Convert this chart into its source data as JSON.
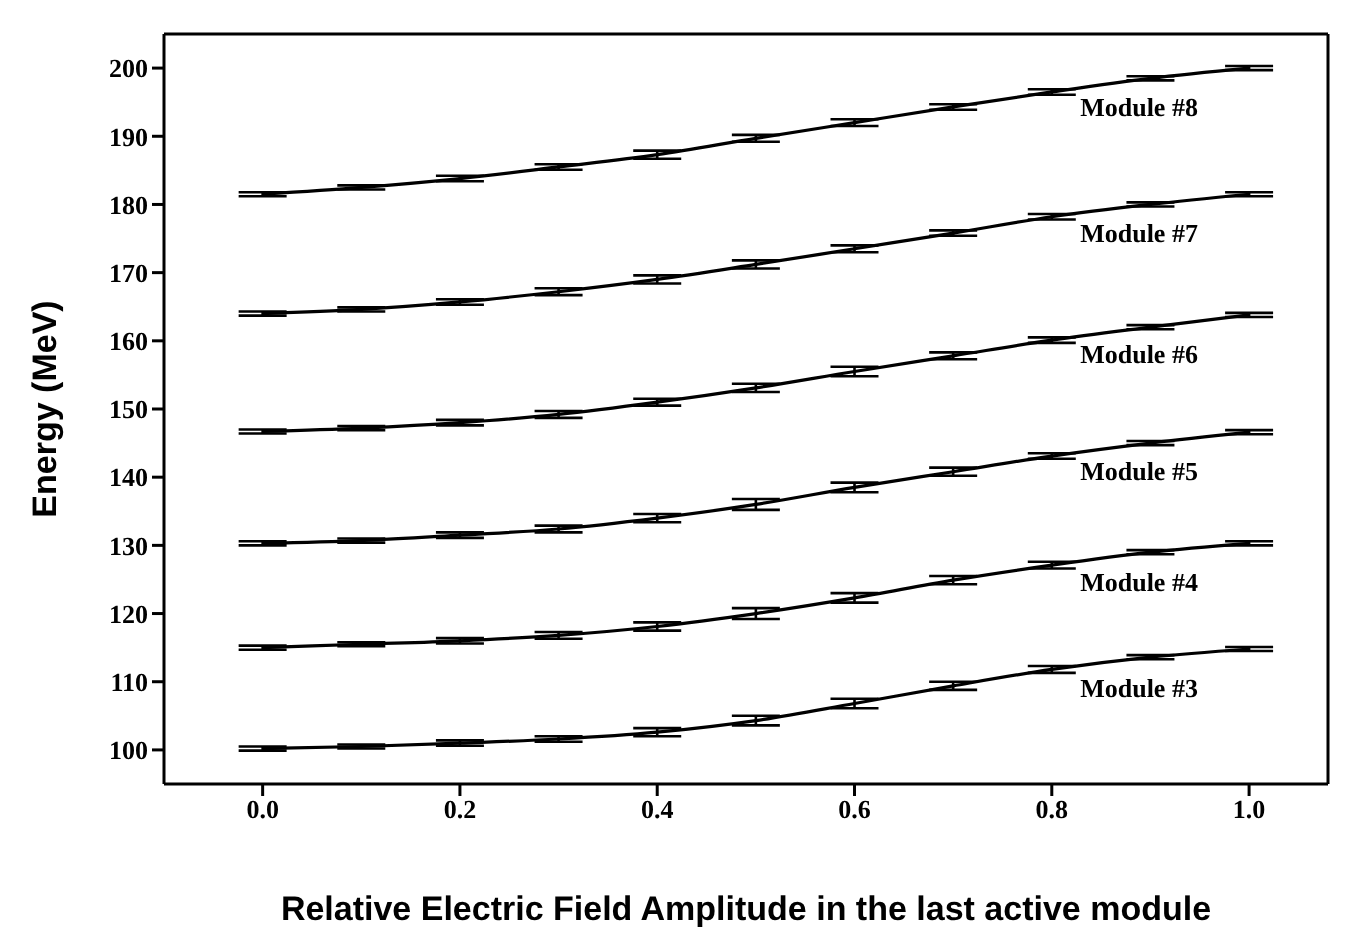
{
  "chart_data": {
    "type": "line",
    "xlabel": "Relative Electric Field Amplitude in the last active module",
    "ylabel": "Energy (MeV)",
    "x": [
      0,
      0.1,
      0.2,
      0.3,
      0.4,
      0.5,
      0.6,
      0.7,
      0.8,
      0.9,
      1.0
    ],
    "xlim": [
      -0.1,
      1.08
    ],
    "xticks": [
      {
        "value": 0,
        "label": "0.0"
      },
      {
        "value": 0.2,
        "label": "0.2"
      },
      {
        "value": 0.4,
        "label": "0.4"
      },
      {
        "value": 0.6,
        "label": "0.6"
      },
      {
        "value": 0.8,
        "label": "0.8"
      },
      {
        "value": 1.0,
        "label": "1.0"
      }
    ],
    "ylim": [
      95,
      205
    ],
    "yticks": [
      100,
      110,
      120,
      130,
      140,
      150,
      160,
      170,
      180,
      190,
      200
    ],
    "marker": "none",
    "line_style": "solid",
    "grid": false,
    "legend": false,
    "series": [
      {
        "name": "Module #8",
        "color": "#000000",
        "values": [
          181.5,
          182.5,
          183.8,
          185.5,
          187.3,
          189.7,
          192,
          194.3,
          196.5,
          198.5,
          200
        ],
        "errors": [
          0.3,
          0.3,
          0.4,
          0.4,
          0.6,
          0.5,
          0.5,
          0.4,
          0.4,
          0.3,
          0.3
        ]
      },
      {
        "name": "Module #7",
        "color": "#000000",
        "values": [
          164,
          164.6,
          165.7,
          167.2,
          169,
          171.2,
          173.5,
          175.8,
          178.2,
          180,
          181.5
        ],
        "errors": [
          0.3,
          0.3,
          0.4,
          0.5,
          0.6,
          0.6,
          0.5,
          0.4,
          0.4,
          0.3,
          0.3
        ]
      },
      {
        "name": "Module #6",
        "color": "#000000",
        "values": [
          146.7,
          147.2,
          148,
          149.2,
          151,
          153.1,
          155.5,
          157.8,
          160.1,
          162,
          163.8
        ],
        "errors": [
          0.3,
          0.3,
          0.4,
          0.5,
          0.5,
          0.6,
          0.7,
          0.5,
          0.4,
          0.3,
          0.3
        ]
      },
      {
        "name": "Module #5",
        "color": "#000000",
        "values": [
          130.3,
          130.7,
          131.5,
          132.4,
          134,
          136,
          138.5,
          140.8,
          143.1,
          145,
          146.6
        ],
        "errors": [
          0.3,
          0.3,
          0.4,
          0.5,
          0.6,
          0.8,
          0.7,
          0.6,
          0.4,
          0.3,
          0.3
        ]
      },
      {
        "name": "Module #4",
        "color": "#000000",
        "values": [
          115,
          115.5,
          116,
          116.8,
          118.1,
          120,
          122.3,
          124.9,
          127.1,
          129,
          130.3
        ],
        "errors": [
          0.3,
          0.3,
          0.4,
          0.5,
          0.6,
          0.8,
          0.7,
          0.6,
          0.5,
          0.3,
          0.3
        ]
      },
      {
        "name": "Module #3",
        "color": "#000000",
        "values": [
          100.2,
          100.5,
          101,
          101.6,
          102.6,
          104.3,
          106.8,
          109.4,
          111.8,
          113.6,
          114.8
        ],
        "errors": [
          0.3,
          0.3,
          0.4,
          0.4,
          0.6,
          0.7,
          0.7,
          0.6,
          0.5,
          0.3,
          0.3
        ]
      }
    ]
  }
}
